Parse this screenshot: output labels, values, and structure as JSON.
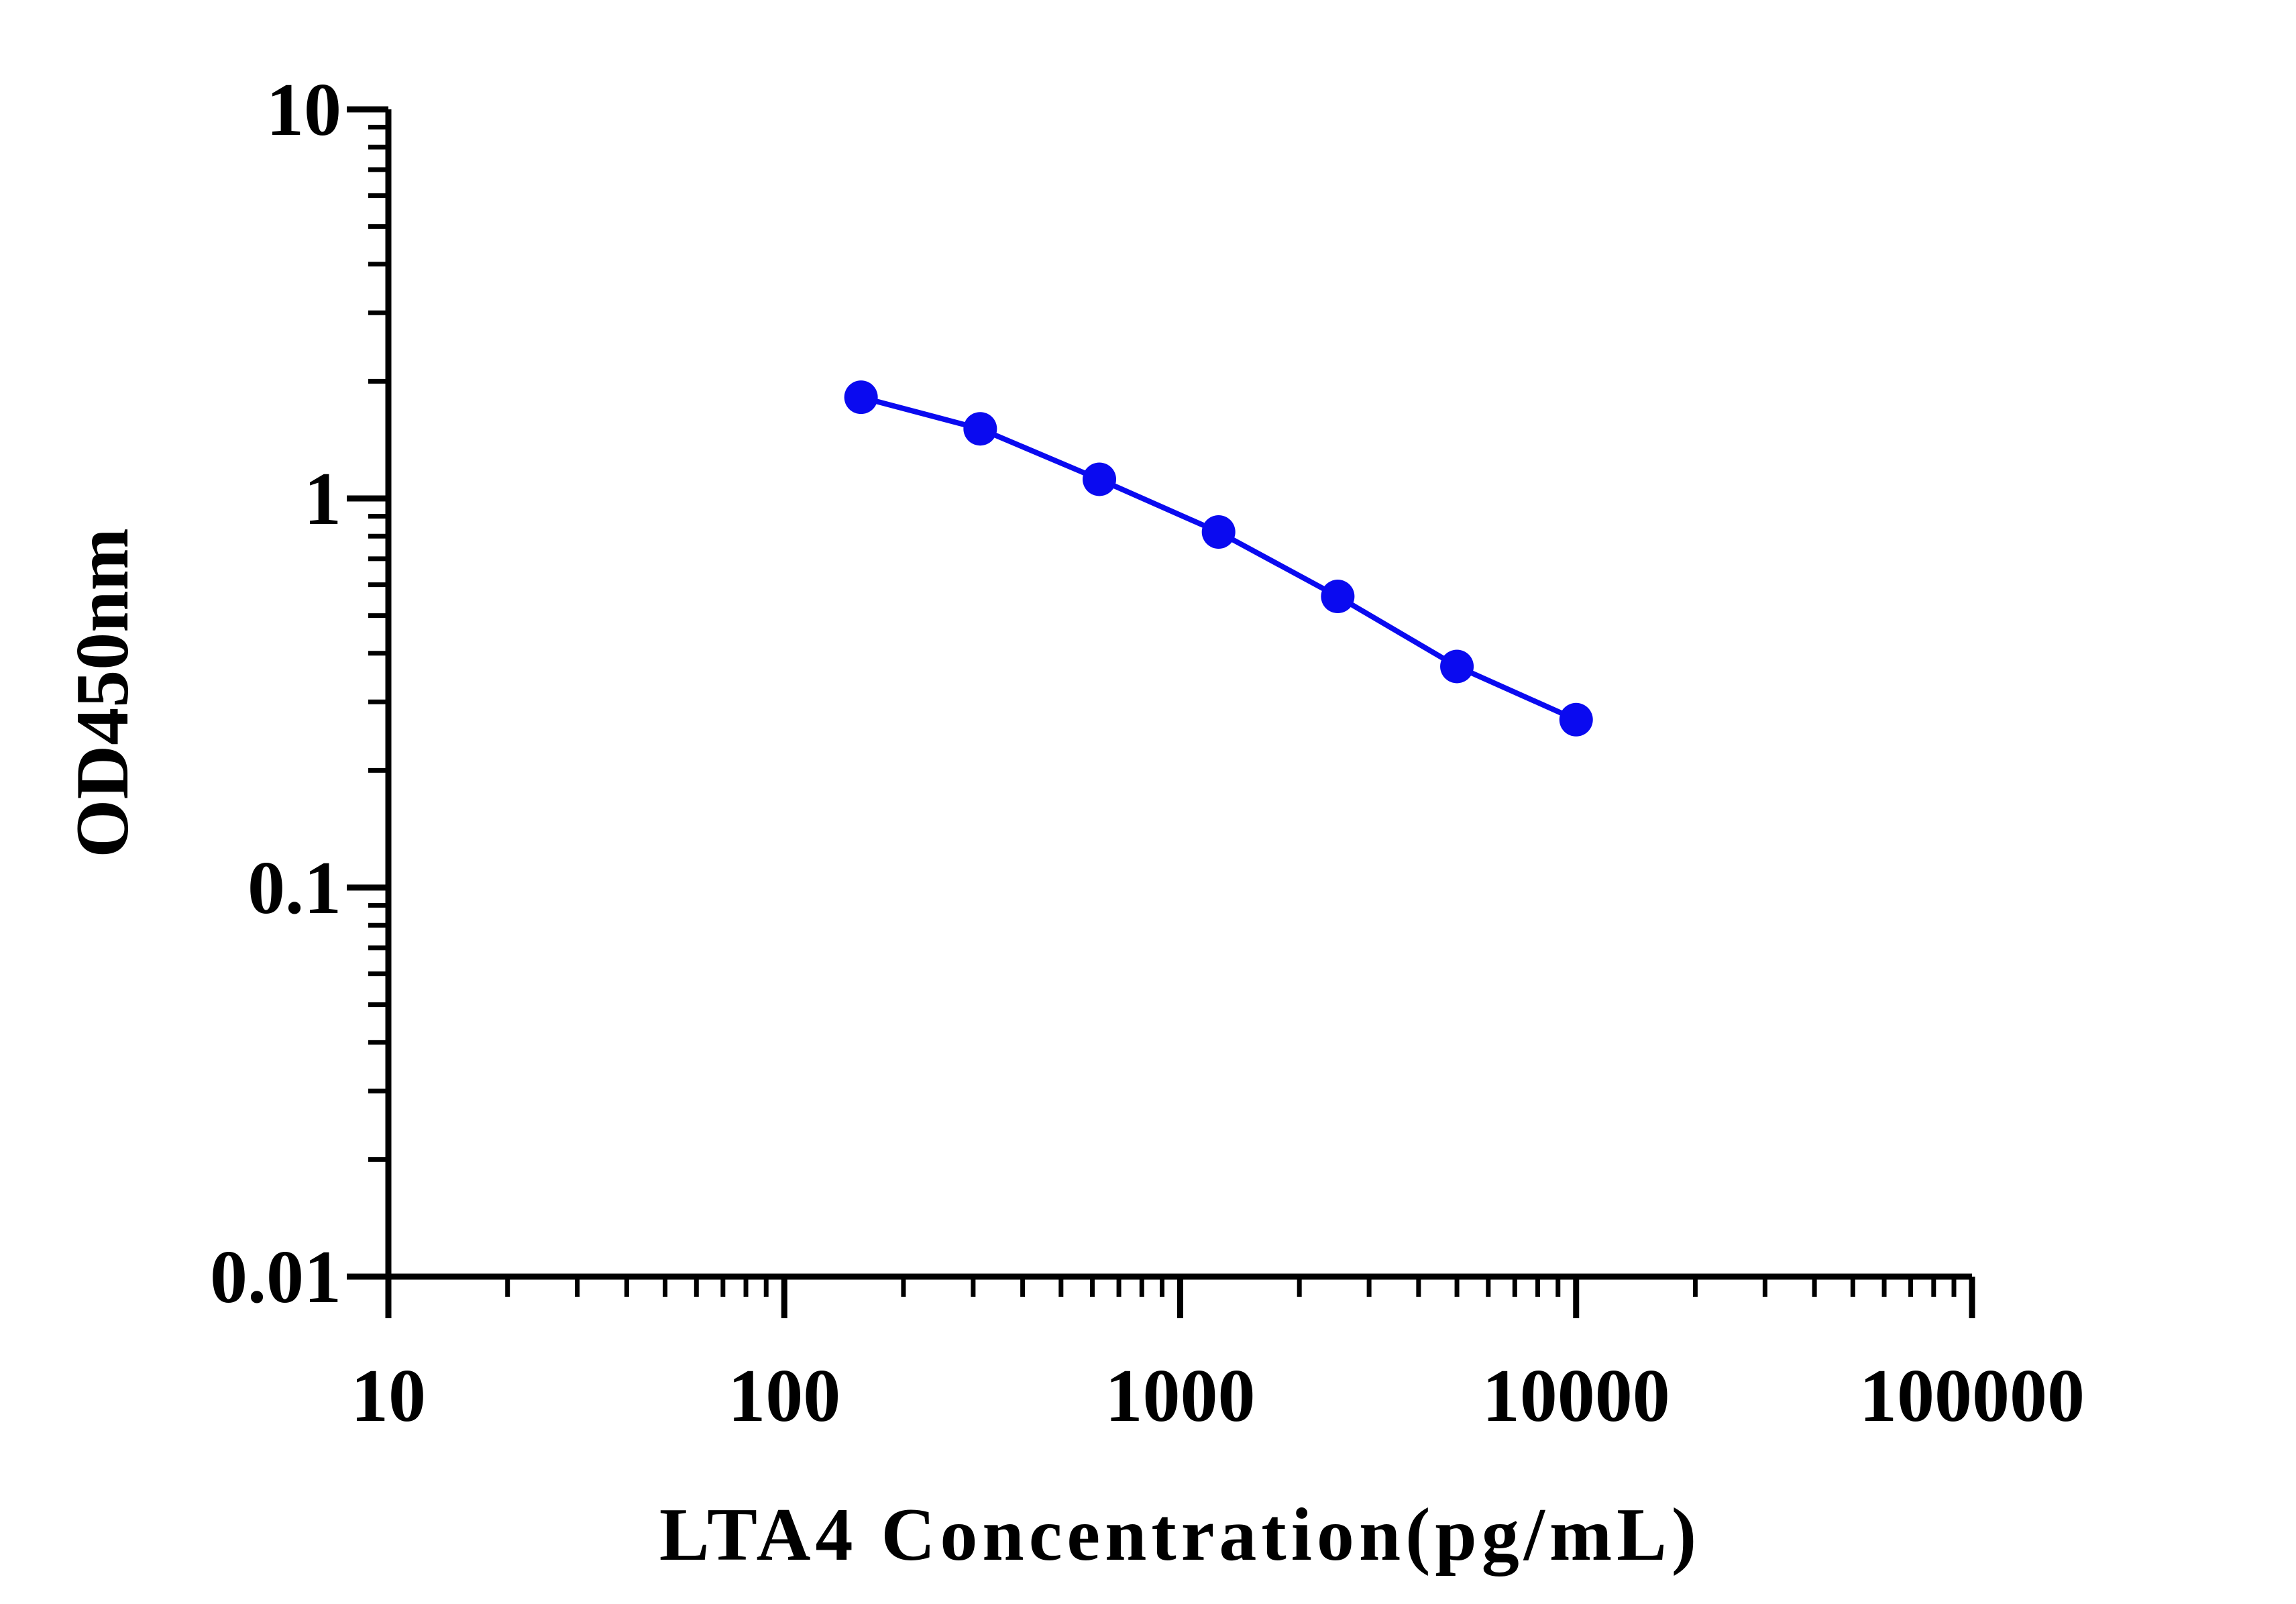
{
  "chart_data": {
    "type": "line",
    "title": "",
    "xlabel": "LTA4 Concentration(pg/mL)",
    "ylabel": "OD450nm",
    "x_scale": "log",
    "y_scale": "log",
    "xlim": [
      10,
      100000
    ],
    "ylim": [
      0.01,
      10
    ],
    "x_ticks": [
      "10",
      "100",
      "1000",
      "10000",
      "100000"
    ],
    "y_ticks": [
      "0.01",
      "0.1",
      "1",
      "10"
    ],
    "grid": false,
    "legend": "none",
    "series": [
      {
        "color": "#0a0af0",
        "marker": "circle",
        "x": [
          156.25,
          312.5,
          625,
          1250,
          2500,
          5000,
          10000
        ],
        "y": [
          1.82,
          1.51,
          1.12,
          0.82,
          0.56,
          0.37,
          0.27
        ]
      }
    ]
  }
}
